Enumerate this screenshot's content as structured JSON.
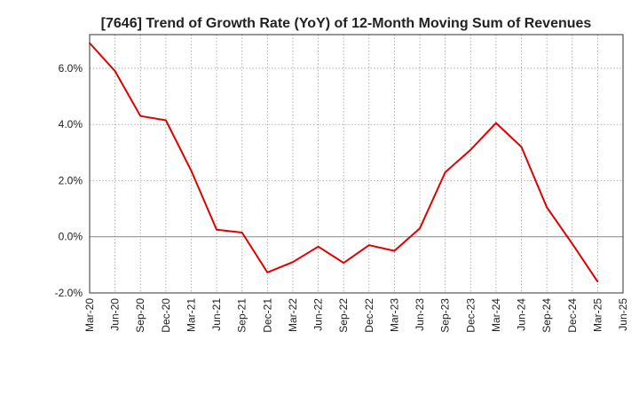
{
  "chart_data": {
    "type": "line",
    "title": "[7646]  Trend of Growth Rate (YoY) of 12-Month Moving Sum of Revenues",
    "xlabel": "",
    "ylabel": "",
    "categories": [
      "Mar-20",
      "Jun-20",
      "Sep-20",
      "Dec-20",
      "Mar-21",
      "Jun-21",
      "Sep-21",
      "Dec-21",
      "Mar-22",
      "Jun-22",
      "Sep-22",
      "Dec-22",
      "Mar-23",
      "Jun-23",
      "Sep-23",
      "Dec-23",
      "Mar-24",
      "Jun-24",
      "Sep-24",
      "Dec-24",
      "Mar-25",
      "Jun-25"
    ],
    "x_tick_labels": [
      "Mar-20",
      "Jun-20",
      "Sep-20",
      "Dec-20",
      "Mar-21",
      "Jun-21",
      "Sep-21",
      "Dec-21",
      "Mar-22",
      "Jun-22",
      "Sep-22",
      "Dec-22",
      "Mar-23",
      "Jun-23",
      "Sep-23",
      "Dec-23",
      "Mar-24",
      "Jun-24",
      "Sep-24",
      "Dec-24",
      "Mar-25",
      "Jun-25"
    ],
    "y_ticks": [
      -2.0,
      0.0,
      2.0,
      4.0,
      6.0
    ],
    "y_tick_labels": [
      "-2.0%",
      "0.0%",
      "2.0%",
      "4.0%",
      "6.0%"
    ],
    "ylim": [
      -2.0,
      7.2
    ],
    "grid": true,
    "series": [
      {
        "color": "#e00000",
        "values": [
          6.9,
          5.9,
          4.3,
          4.15,
          2.35,
          0.25,
          0.15,
          -1.27,
          -0.9,
          -0.35,
          -0.93,
          -0.3,
          -0.5,
          0.3,
          2.3,
          3.1,
          4.05,
          3.2,
          1.05,
          -0.25,
          -1.6,
          null
        ]
      }
    ]
  }
}
